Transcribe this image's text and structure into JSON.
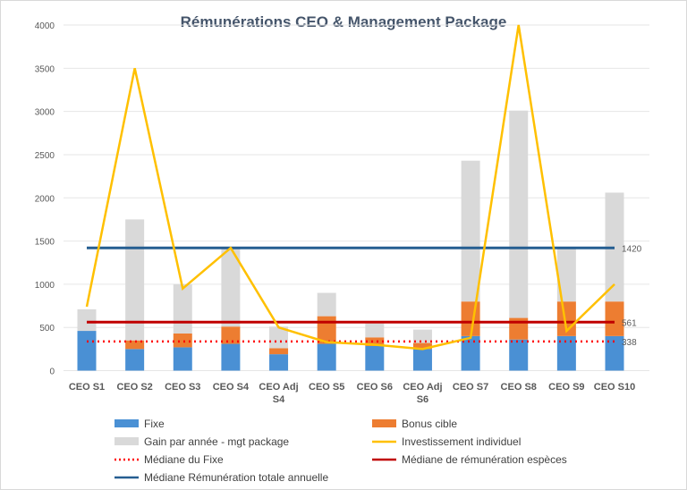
{
  "chart_data": {
    "type": "bar",
    "title": "Rémunérations CEO & Management Package",
    "categories": [
      "CEO S1",
      "CEO S2",
      "CEO S3",
      "CEO S4",
      "CEO Adj S4",
      "CEO S5",
      "CEO S6",
      "CEO Adj S6",
      "CEO S7",
      "CEO S8",
      "CEO S9",
      "CEO S10"
    ],
    "ylim": [
      0,
      4000
    ],
    "yticks": [
      0,
      500,
      1000,
      1500,
      2000,
      2500,
      3000,
      3500,
      4000
    ],
    "grid": true,
    "legend_position": "bottom",
    "stacked_series": [
      {
        "name": "Fixe",
        "color": "#4a90d4",
        "values": [
          460,
          250,
          270,
          310,
          190,
          310,
          285,
          250,
          400,
          360,
          400,
          400
        ]
      },
      {
        "name": "Bonus cible",
        "color": "#ed7d31",
        "values": [
          0,
          100,
          160,
          200,
          70,
          320,
          100,
          70,
          400,
          250,
          400,
          400
        ]
      },
      {
        "name": "Gain par année - mgt package",
        "color": "#d9d9d9",
        "values": [
          250,
          1400,
          570,
          910,
          250,
          270,
          160,
          155,
          1630,
          2400,
          620,
          1260
        ]
      }
    ],
    "line_series": [
      {
        "name": "Investissement individuel",
        "color": "#ffc000",
        "values": [
          740,
          3500,
          950,
          1420,
          500,
          330,
          300,
          250,
          380,
          4000,
          460,
          1000
        ]
      }
    ],
    "reference_lines": [
      {
        "name": "Médiane du Fixe",
        "color": "#ff0000",
        "value": 338,
        "label": "338",
        "style": "dotted"
      },
      {
        "name": "Médiane de rémunération espèces",
        "color": "#c00000",
        "value": 561,
        "label": "561",
        "style": "solid"
      },
      {
        "name": "Médiane Rémunération totale annuelle",
        "color": "#255e91",
        "value": 1420,
        "label": "1420",
        "style": "solid"
      }
    ]
  }
}
